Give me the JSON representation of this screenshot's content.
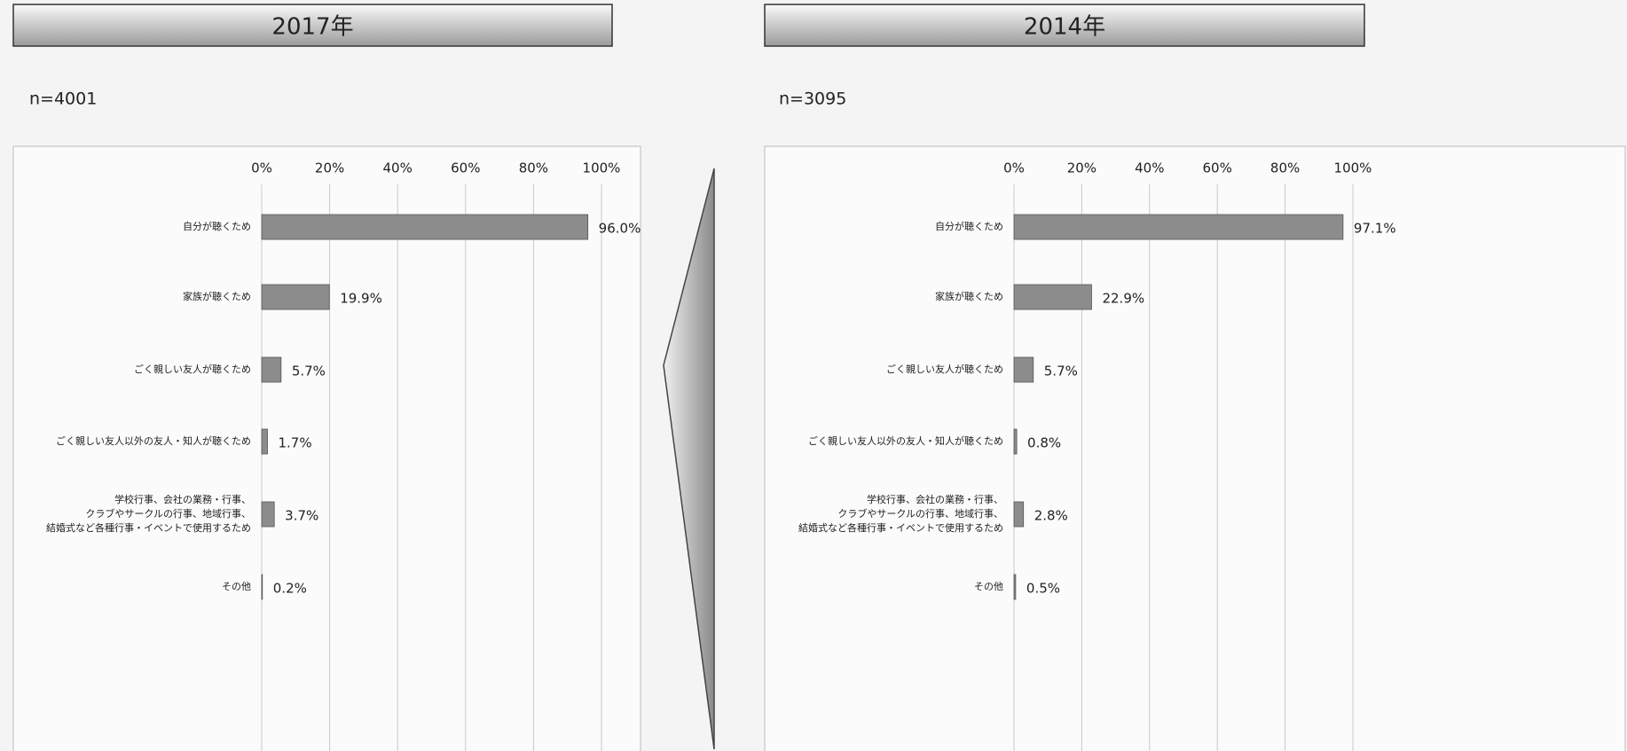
{
  "chart_data": [
    {
      "type": "bar",
      "orientation": "horizontal",
      "title": "2017年",
      "subtitle": "n=4001",
      "categories": [
        "自分が聴くため",
        "家族が聴くため",
        "ごく親しい友人が聴くため",
        "ごく親しい友人以外の友人・知人が聴くため",
        [
          "学校行事、会社の業務・行事、",
          "クラブやサークルの行事、地域行事、",
          "結婚式など各種行事・イベントで使用するため"
        ],
        "その他"
      ],
      "values": [
        96.0,
        19.9,
        5.7,
        1.7,
        3.7,
        0.2
      ],
      "value_labels": [
        "96.0%",
        "19.9%",
        "5.7%",
        "1.7%",
        "3.7%",
        "0.2%"
      ],
      "color": "#8c8c8c",
      "xlim": [
        0,
        100
      ],
      "xticks": [
        {
          "value": 0,
          "label": "0%"
        },
        {
          "value": 20,
          "label": "20%"
        },
        {
          "value": 40,
          "label": "40%"
        },
        {
          "value": 60,
          "label": "60%"
        },
        {
          "value": 80,
          "label": "80%"
        },
        {
          "value": 100,
          "label": "100%"
        }
      ],
      "grid": true
    },
    {
      "type": "bar",
      "orientation": "horizontal",
      "title": "2014年",
      "subtitle": "n=3095",
      "categories": [
        "自分が聴くため",
        "家族が聴くため",
        "ごく親しい友人が聴くため",
        "ごく親しい友人以外の友人・知人が聴くため",
        [
          "学校行事、会社の業務・行事、",
          "クラブやサークルの行事、地域行事、",
          "結婚式など各種行事・イベントで使用するため"
        ],
        "その他"
      ],
      "values": [
        97.1,
        22.9,
        5.7,
        0.8,
        2.8,
        0.5
      ],
      "value_labels": [
        "97.1%",
        "22.9%",
        "5.7%",
        "0.8%",
        "2.8%",
        "0.5%"
      ],
      "color": "#8c8c8c",
      "xlim": [
        0,
        100
      ],
      "xticks": [
        {
          "value": 0,
          "label": "0%"
        },
        {
          "value": 20,
          "label": "20%"
        },
        {
          "value": 40,
          "label": "40%"
        },
        {
          "value": 60,
          "label": "60%"
        },
        {
          "value": 80,
          "label": "80%"
        },
        {
          "value": 100,
          "label": "100%"
        }
      ],
      "grid": true
    }
  ]
}
